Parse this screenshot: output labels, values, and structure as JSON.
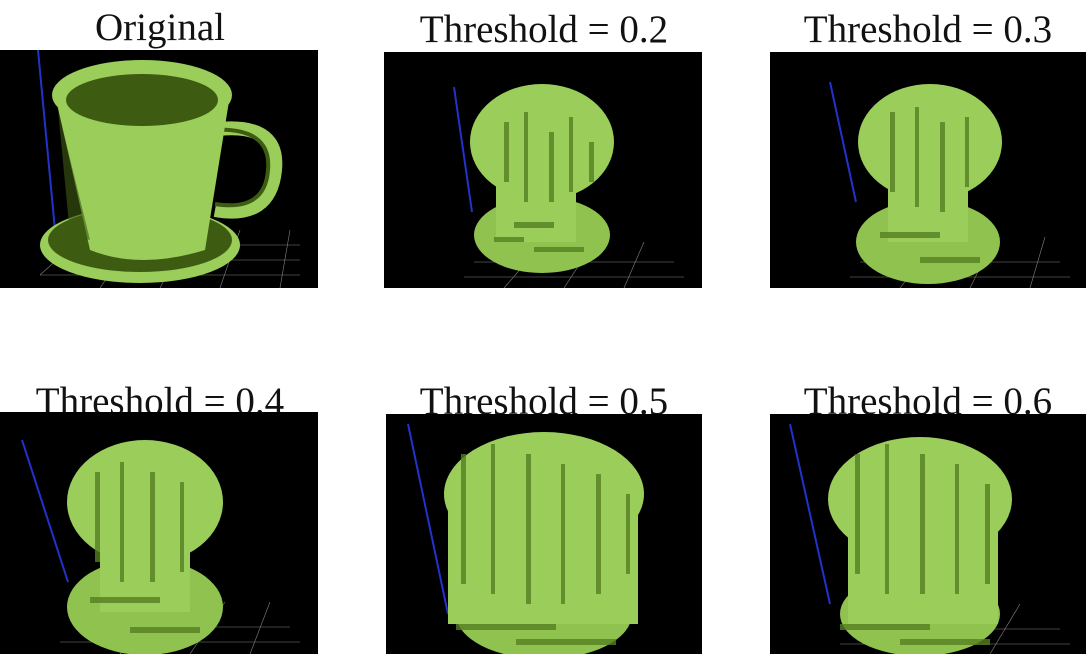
{
  "figure": {
    "panels": [
      {
        "id": "original",
        "label": "Original",
        "content": "voxel-cup-original"
      },
      {
        "id": "t02",
        "label": "Threshold = 0.2",
        "content": "voxel-reconstruction"
      },
      {
        "id": "t03",
        "label": "Threshold = 0.3",
        "content": "voxel-reconstruction"
      },
      {
        "id": "t04",
        "label": "Threshold = 0.4",
        "content": "voxel-reconstruction"
      },
      {
        "id": "t05",
        "label": "Threshold = 0.5",
        "content": "voxel-reconstruction"
      },
      {
        "id": "t06",
        "label": "Threshold = 0.6",
        "content": "voxel-reconstruction"
      }
    ],
    "colors": {
      "background": "#000000",
      "voxel_light": "#9acd5a",
      "voxel_dark": "#3d5c12",
      "axis": "#2233cc",
      "grid": "#bbbbbb"
    }
  }
}
